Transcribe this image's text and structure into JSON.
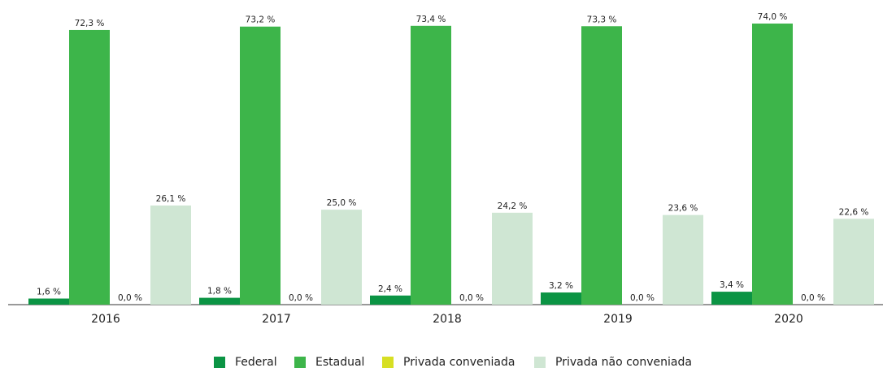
{
  "chart_data": {
    "type": "bar",
    "categories": [
      "2016",
      "2017",
      "2018",
      "2019",
      "2020"
    ],
    "ylim": [
      0,
      74
    ],
    "legend": "bottom",
    "series": [
      {
        "name": "Federal",
        "color": "#0b9444",
        "values": [
          1.6,
          1.8,
          2.4,
          3.2,
          3.4
        ],
        "value_labels": [
          "1,6 %",
          "1,8 %",
          "2,4 %",
          "3,2 %",
          "3,4 %"
        ]
      },
      {
        "name": "Estadual",
        "color": "#3db54a",
        "values": [
          72.3,
          73.2,
          73.4,
          73.3,
          74.0
        ],
        "value_labels": [
          "72,3 %",
          "73,2 %",
          "73,4 %",
          "73,3 %",
          "74,0 %"
        ]
      },
      {
        "name": "Privada conveniada",
        "color": "#d7df23",
        "values": [
          0.0,
          0.0,
          0.0,
          0.0,
          0.0
        ],
        "value_labels": [
          "0,0 %",
          "0,0 %",
          "0,0 %",
          "0,0 %",
          "0,0 %"
        ]
      },
      {
        "name": "Privada não conveniada",
        "color": "#cfe6d3",
        "values": [
          26.1,
          25.0,
          24.2,
          23.6,
          22.6
        ],
        "value_labels": [
          "26,1 %",
          "25,0 %",
          "24,2 %",
          "23,6 %",
          "22,6 %"
        ]
      }
    ]
  }
}
